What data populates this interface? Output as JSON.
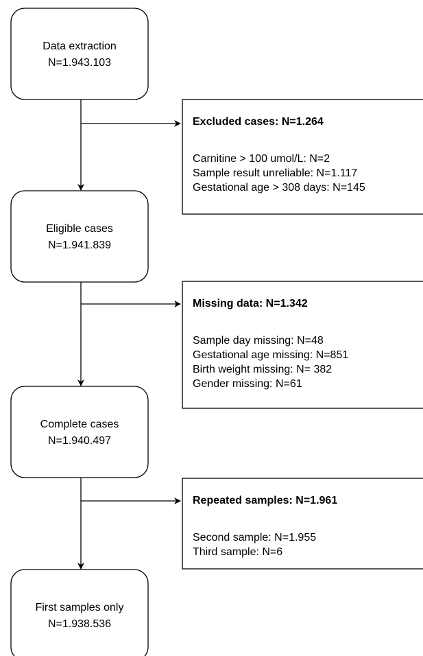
{
  "nodes": [
    {
      "label": "Data extraction",
      "count": "N=1.943.103"
    },
    {
      "label": "Eligible cases",
      "count": "N=1.941.839"
    },
    {
      "label": "Complete cases",
      "count": "N=1.940.497"
    },
    {
      "label": "First samples only",
      "count": "N=1.938.536"
    }
  ],
  "exclusions": [
    {
      "title": "Excluded cases: N=1.264",
      "items": [
        "Carnitine > 100 umol/L: N=2",
        "Sample result unreliable: N=1.117",
        "Gestational age > 308 days: N=145"
      ]
    },
    {
      "title": "Missing data: N=1.342",
      "items": [
        "Sample day missing: N=48",
        "Gestational age missing: N=851",
        "Birth weight missing: N= 382",
        "Gender missing: N=61"
      ]
    },
    {
      "title": "Repeated samples: N=1.961",
      "items": [
        "Second sample: N=1.955",
        "Third sample: N=6"
      ]
    }
  ]
}
